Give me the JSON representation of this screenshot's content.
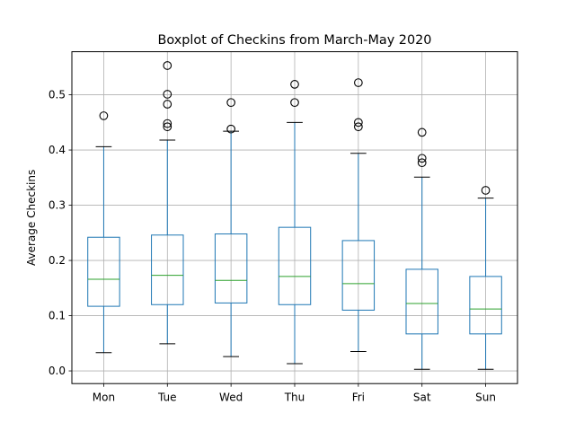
{
  "chart_data": {
    "type": "boxplot",
    "title": "Boxplot of Checkins from March-May 2020",
    "xlabel": "",
    "ylabel": "Average Checkins",
    "ylim": [
      -0.023,
      0.578
    ],
    "yticks": [
      0.0,
      0.1,
      0.2,
      0.3,
      0.4,
      0.5
    ],
    "ytick_labels": [
      "0.0",
      "0.1",
      "0.2",
      "0.3",
      "0.4",
      "0.5"
    ],
    "grid": true,
    "categories": [
      "Mon",
      "Tue",
      "Wed",
      "Thu",
      "Fri",
      "Sat",
      "Sun"
    ],
    "boxes": [
      {
        "category": "Mon",
        "whisker_low": 0.033,
        "q1": 0.117,
        "median": 0.166,
        "q3": 0.242,
        "whisker_high": 0.406,
        "outliers": [
          0.462
        ]
      },
      {
        "category": "Tue",
        "whisker_low": 0.049,
        "q1": 0.12,
        "median": 0.173,
        "q3": 0.246,
        "whisker_high": 0.418,
        "outliers": [
          0.442,
          0.448,
          0.483,
          0.501,
          0.553
        ]
      },
      {
        "category": "Wed",
        "whisker_low": 0.026,
        "q1": 0.123,
        "median": 0.164,
        "q3": 0.248,
        "whisker_high": 0.434,
        "outliers": [
          0.438,
          0.486
        ]
      },
      {
        "category": "Thu",
        "whisker_low": 0.013,
        "q1": 0.12,
        "median": 0.171,
        "q3": 0.26,
        "whisker_high": 0.45,
        "outliers": [
          0.486,
          0.519
        ]
      },
      {
        "category": "Fri",
        "whisker_low": 0.035,
        "q1": 0.11,
        "median": 0.158,
        "q3": 0.236,
        "whisker_high": 0.394,
        "outliers": [
          0.442,
          0.45,
          0.522
        ]
      },
      {
        "category": "Sat",
        "whisker_low": 0.003,
        "q1": 0.067,
        "median": 0.122,
        "q3": 0.184,
        "whisker_high": 0.351,
        "outliers": [
          0.377,
          0.385,
          0.432
        ]
      },
      {
        "category": "Sun",
        "whisker_low": 0.003,
        "q1": 0.067,
        "median": 0.112,
        "q3": 0.171,
        "whisker_high": 0.313,
        "outliers": [
          0.327
        ]
      }
    ],
    "colors": {
      "box": "#1f77b4",
      "median": "#2ca02c",
      "whisker_cap": "#000000",
      "outlier_edge": "#000000",
      "grid": "#b0b0b0",
      "axes": "#000000"
    }
  }
}
